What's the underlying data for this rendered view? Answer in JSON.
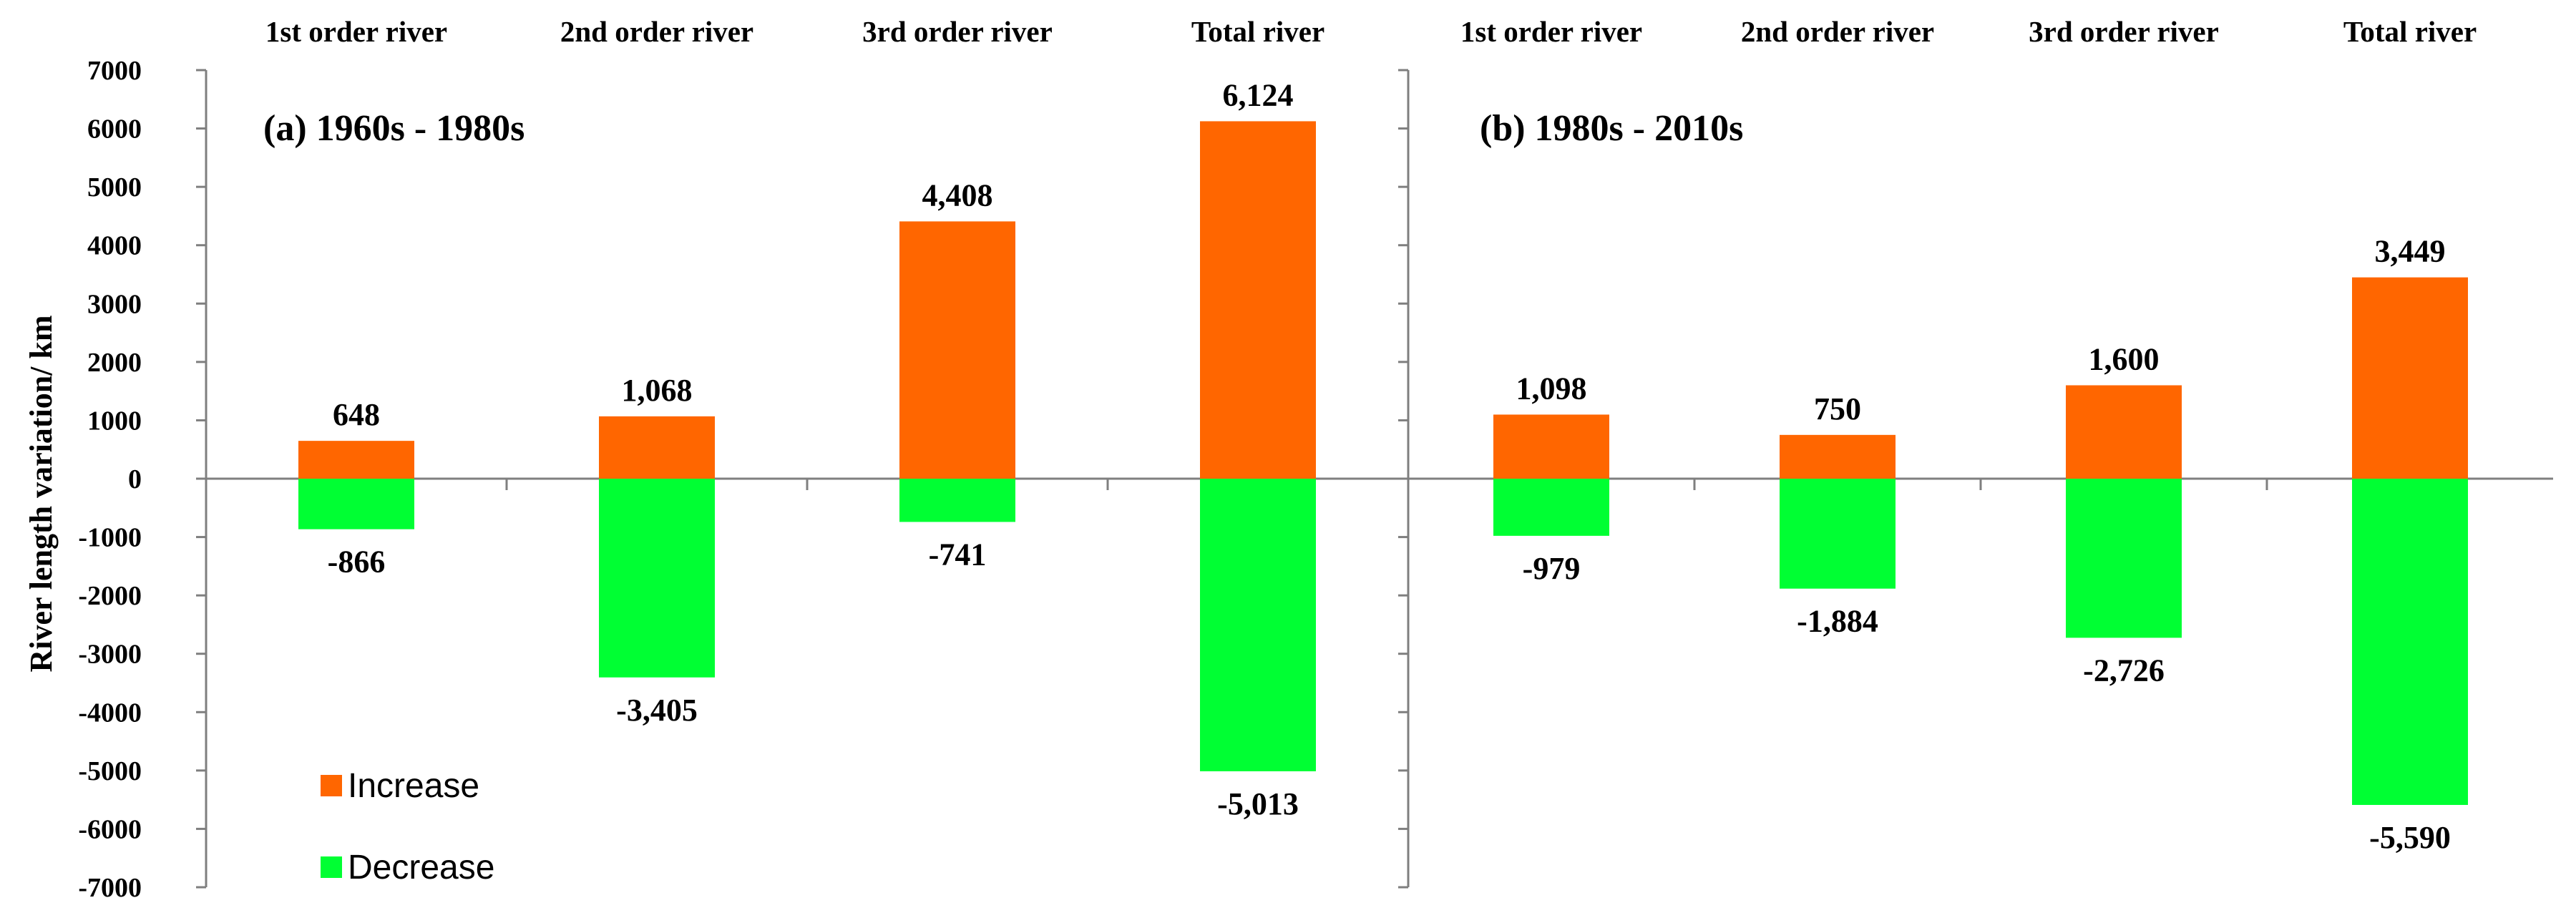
{
  "colors": {
    "increase": "#FF6600",
    "decrease": "#00FF33",
    "axis": "#7f7f7f"
  },
  "y_axis": {
    "label": "River length variation/ km",
    "ticks": [
      "7000",
      "6000",
      "5000",
      "4000",
      "3000",
      "2000",
      "1000",
      "0",
      "-1000",
      "-2000",
      "-3000",
      "-4000",
      "-5000",
      "-6000",
      "-7000"
    ]
  },
  "legend": {
    "increase": "Increase",
    "decrease": "Decrease"
  },
  "chart_data": [
    {
      "type": "bar",
      "title": "(a) 1960s - 1980s",
      "categories": [
        "1st order river",
        "2nd order river",
        "3rd order river",
        "Total river"
      ],
      "series": [
        {
          "name": "Increase",
          "values": [
            648,
            1068,
            4408,
            6124
          ],
          "labels": [
            "648",
            "1,068",
            "4,408",
            "6,124"
          ]
        },
        {
          "name": "Decrease",
          "values": [
            -866,
            -3405,
            -741,
            -5013
          ],
          "labels": [
            "-866",
            "-3,405",
            "-741",
            "-5,013"
          ]
        }
      ],
      "ylabel": "River length variation/ km",
      "ylim": [
        -7000,
        7000
      ],
      "legend": "bottom-left",
      "grid": false
    },
    {
      "type": "bar",
      "title": "(b) 1980s - 2010s",
      "categories": [
        "1st order river",
        "2nd order river",
        "3rd order river",
        "Total river"
      ],
      "series": [
        {
          "name": "Increase",
          "values": [
            1098,
            750,
            1600,
            3449
          ],
          "labels": [
            "1,098",
            "750",
            "1,600",
            "3,449"
          ]
        },
        {
          "name": "Decrease",
          "values": [
            -979,
            -1884,
            -2726,
            -5590
          ],
          "labels": [
            "-979",
            "-1,884",
            "-2,726",
            "-5,590"
          ]
        }
      ],
      "ylim": [
        -7000,
        7000
      ],
      "grid": false
    }
  ]
}
